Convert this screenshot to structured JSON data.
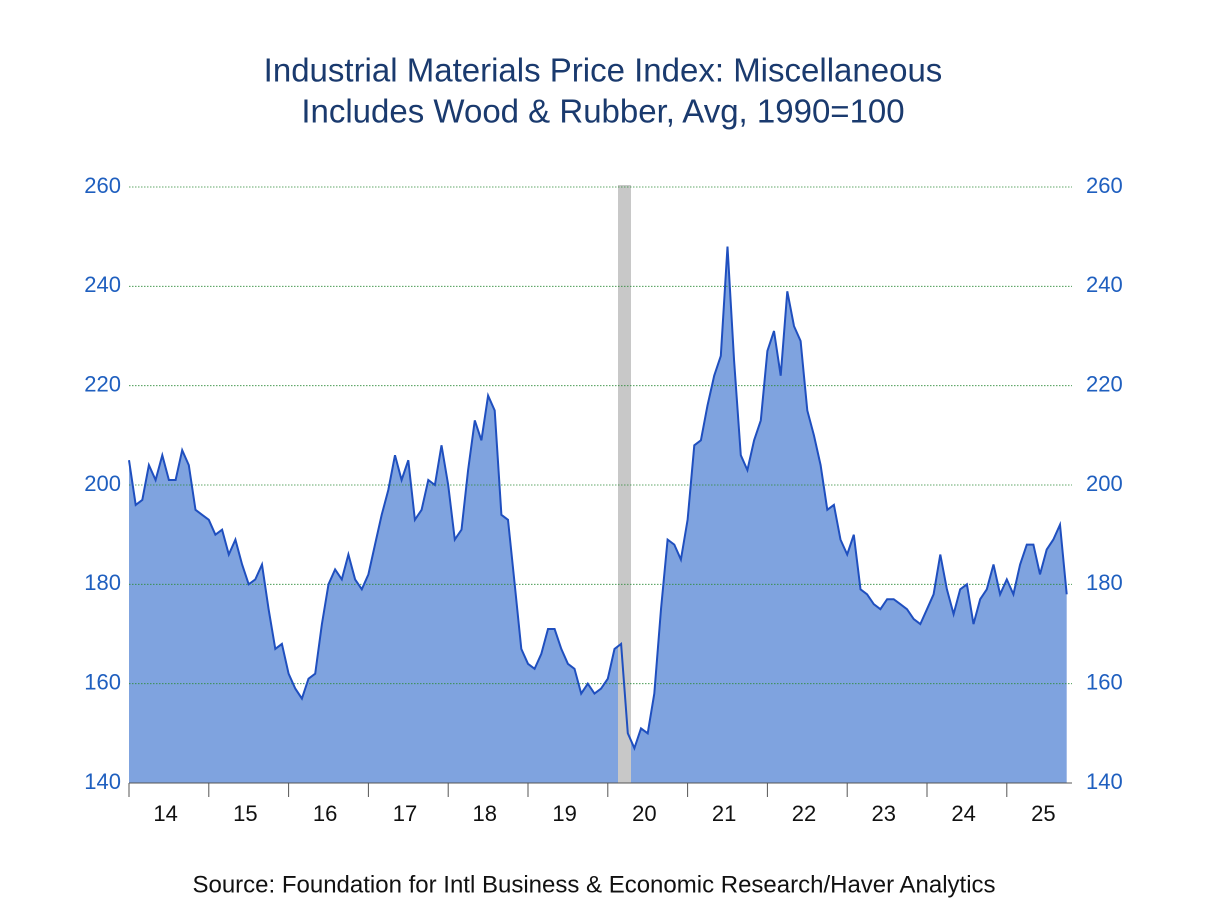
{
  "chart_data": {
    "type": "area",
    "title": "Industrial Materials Price Index: Miscellaneous",
    "subtitle": "Includes Wood & Rubber, Avg, 1990=100",
    "source": "Source:  Foundation for Intl Business & Economic Research/Haver Analytics",
    "categories": [
      null,
      null,
      null,
      null,
      null,
      null,
      "14",
      null,
      null,
      null,
      null,
      null,
      null,
      null,
      null,
      null,
      null,
      null,
      "15",
      null,
      null,
      null,
      null,
      null,
      null,
      null,
      null,
      null,
      null,
      null,
      "16",
      null,
      null,
      null,
      null,
      null,
      null,
      null,
      null,
      null,
      null,
      null,
      "17",
      null,
      null,
      null,
      null,
      null,
      null,
      null,
      null,
      null,
      null,
      null,
      "18",
      null,
      null,
      null,
      null,
      null,
      null,
      null,
      null,
      null,
      null,
      null,
      "19",
      null,
      null,
      null,
      null,
      null,
      null,
      null,
      null,
      null,
      null,
      null,
      "20",
      null,
      null,
      null,
      null,
      null,
      null,
      null,
      null,
      null,
      null,
      null,
      "21",
      null,
      null,
      null,
      null,
      null,
      null,
      null,
      null,
      null,
      null,
      null,
      "22",
      null,
      null,
      null,
      null,
      null,
      null,
      null,
      null,
      null,
      null,
      null,
      "23",
      null,
      null,
      null,
      null,
      null,
      null,
      null,
      null,
      null,
      null,
      null,
      "24",
      null,
      null,
      null,
      null,
      null,
      null,
      null,
      null,
      null,
      null,
      null,
      "25",
      null,
      null,
      null
    ],
    "series": [
      {
        "color": "#1f4fbf",
        "values": [
          205,
          196,
          197,
          204,
          201,
          206,
          201,
          201,
          207,
          204,
          195,
          194,
          193,
          190,
          191,
          186,
          189,
          184,
          180,
          181,
          184,
          175,
          167,
          168,
          162,
          159,
          157,
          161,
          162,
          172,
          180,
          183,
          181,
          186,
          181,
          179,
          182,
          188,
          194,
          199,
          206,
          201,
          205,
          193,
          195,
          201,
          200,
          208,
          200,
          189,
          191,
          203,
          213,
          209,
          218,
          215,
          194,
          193,
          180,
          167,
          164,
          163,
          166,
          171,
          171,
          167,
          164,
          163,
          158,
          160,
          158,
          159,
          161,
          167,
          168,
          150,
          147,
          151,
          150,
          158,
          175,
          189,
          188,
          185,
          193,
          208,
          209,
          216,
          222,
          226,
          248,
          225,
          206,
          203,
          209,
          213,
          227,
          231,
          222,
          239,
          232,
          229,
          215,
          210,
          204,
          195,
          196,
          189,
          186,
          190,
          179,
          178,
          176,
          175,
          177,
          177,
          176,
          175,
          173,
          172,
          175,
          178,
          186,
          179,
          174,
          179,
          180,
          172,
          177,
          179,
          184,
          178,
          181,
          178,
          184,
          188,
          188,
          182,
          187,
          189,
          192,
          178
        ]
      }
    ],
    "fill_color": "#7fa3df",
    "ylim": [
      140,
      260
    ],
    "yticks": [
      140,
      160,
      180,
      200,
      220,
      240,
      260
    ],
    "grid": true
  }
}
